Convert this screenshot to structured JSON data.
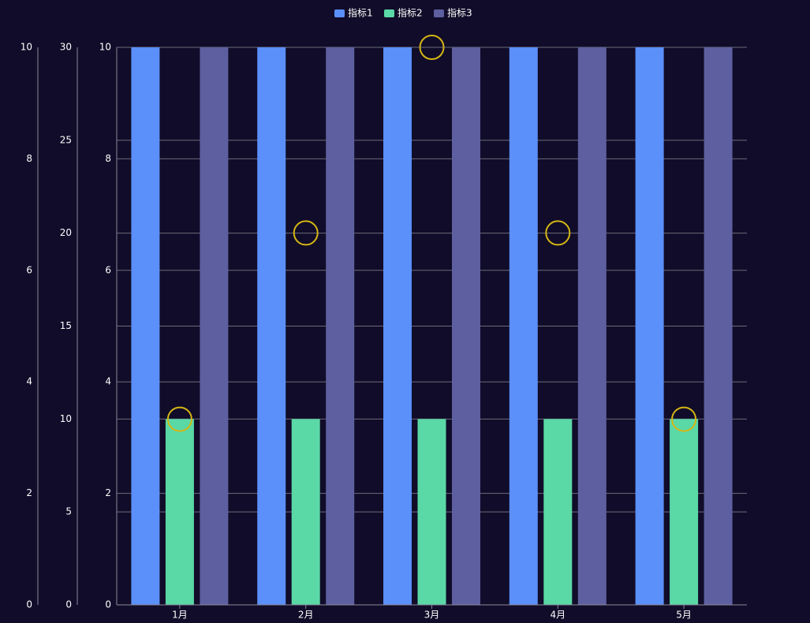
{
  "chart_data": {
    "type": "bar",
    "categories": [
      "1月",
      "2月",
      "3月",
      "4月",
      "5月"
    ],
    "legend_position": "top-center",
    "grid": true,
    "series": [
      {
        "name": "指标1",
        "axis": "y1",
        "values": [
          10,
          10,
          10,
          10,
          10
        ],
        "color": "#5b8ff9"
      },
      {
        "name": "指标2",
        "axis": "y3",
        "values": [
          10,
          10,
          10,
          10,
          10
        ],
        "color": "#5ad8a6"
      },
      {
        "name": "指标3",
        "axis": "y1",
        "values": [
          10,
          10,
          10,
          10,
          10
        ],
        "color": "#5d5fa0"
      }
    ],
    "markers": {
      "shape": "circle-outline",
      "color": "#d4b614",
      "axis": "y1",
      "values": [
        3.33,
        6.67,
        10,
        6.67,
        3.33
      ]
    },
    "axes": {
      "y1": {
        "ylim": [
          0,
          10
        ],
        "ticks": [
          0,
          2,
          4,
          6,
          8,
          10
        ],
        "tick_labels": [
          "0",
          "2",
          "4",
          "6",
          "8",
          "10"
        ]
      },
      "y2": {
        "ylim": [
          0,
          10
        ],
        "ticks": [
          0,
          2,
          4,
          6,
          8,
          10
        ],
        "tick_labels": [
          "0",
          "2",
          "4",
          "6",
          "8",
          "10"
        ]
      },
      "y3": {
        "ylim": [
          0,
          30
        ],
        "ticks": [
          0,
          5,
          10,
          15,
          20,
          25,
          30
        ],
        "tick_labels": [
          "0",
          "5",
          "10",
          "15",
          "20",
          "25",
          "30"
        ]
      }
    },
    "colors": {
      "background": "#110c29",
      "axis_line": "#8a8a9a",
      "grid_line": "#6b6b7b",
      "label": "#ffffff"
    }
  }
}
